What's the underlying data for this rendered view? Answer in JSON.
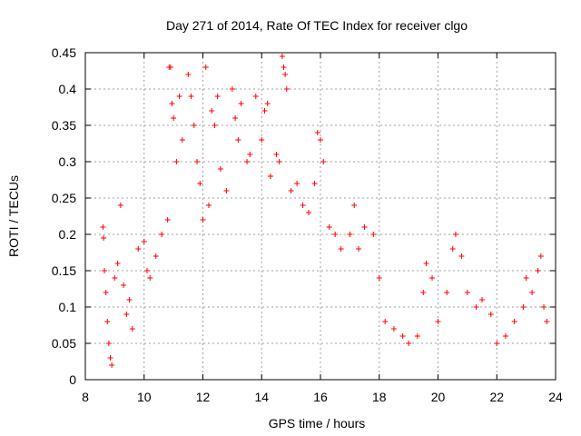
{
  "chart_data": {
    "type": "scatter",
    "title": "Day 271 of 2014, Rate Of TEC Index for receiver clgo",
    "xlabel": "GPS time / hours",
    "ylabel": "ROTI / TECUs",
    "xlim": [
      8,
      24
    ],
    "ylim": [
      0,
      0.45
    ],
    "xticks": [
      "8",
      "10",
      "12",
      "14",
      "16",
      "18",
      "20",
      "22",
      "24"
    ],
    "yticks": [
      "0",
      "0.05",
      "0.1",
      "0.15",
      "0.2",
      "0.25",
      "0.3",
      "0.35",
      "0.4",
      "0.45"
    ],
    "grid": true,
    "marker": "+",
    "color": "#ff0000",
    "series": [
      {
        "name": "ROTI",
        "points": [
          [
            8.6,
            0.21
          ],
          [
            8.62,
            0.195
          ],
          [
            8.65,
            0.15
          ],
          [
            8.7,
            0.12
          ],
          [
            8.75,
            0.08
          ],
          [
            8.8,
            0.05
          ],
          [
            8.85,
            0.03
          ],
          [
            8.9,
            0.02
          ],
          [
            9.0,
            0.14
          ],
          [
            9.1,
            0.16
          ],
          [
            9.2,
            0.24
          ],
          [
            9.3,
            0.13
          ],
          [
            9.4,
            0.09
          ],
          [
            9.5,
            0.11
          ],
          [
            9.6,
            0.07
          ],
          [
            9.8,
            0.18
          ],
          [
            10.0,
            0.19
          ],
          [
            10.1,
            0.15
          ],
          [
            10.2,
            0.14
          ],
          [
            10.4,
            0.17
          ],
          [
            10.6,
            0.2
          ],
          [
            10.8,
            0.22
          ],
          [
            10.85,
            0.43
          ],
          [
            10.9,
            0.43
          ],
          [
            10.95,
            0.38
          ],
          [
            11.0,
            0.36
          ],
          [
            11.1,
            0.3
          ],
          [
            11.2,
            0.39
          ],
          [
            11.3,
            0.33
          ],
          [
            11.5,
            0.42
          ],
          [
            11.6,
            0.39
          ],
          [
            11.7,
            0.35
          ],
          [
            11.8,
            0.3
          ],
          [
            11.9,
            0.27
          ],
          [
            12.0,
            0.22
          ],
          [
            12.1,
            0.43
          ],
          [
            12.2,
            0.24
          ],
          [
            12.3,
            0.37
          ],
          [
            12.4,
            0.35
          ],
          [
            12.5,
            0.39
          ],
          [
            12.6,
            0.29
          ],
          [
            12.8,
            0.26
          ],
          [
            13.0,
            0.4
          ],
          [
            13.1,
            0.36
          ],
          [
            13.2,
            0.33
          ],
          [
            13.3,
            0.38
          ],
          [
            13.5,
            0.3
          ],
          [
            13.6,
            0.31
          ],
          [
            13.8,
            0.39
          ],
          [
            14.0,
            0.33
          ],
          [
            14.1,
            0.37
          ],
          [
            14.2,
            0.38
          ],
          [
            14.3,
            0.28
          ],
          [
            14.5,
            0.31
          ],
          [
            14.6,
            0.3
          ],
          [
            14.7,
            0.445
          ],
          [
            14.75,
            0.43
          ],
          [
            14.8,
            0.42
          ],
          [
            14.85,
            0.4
          ],
          [
            15.0,
            0.26
          ],
          [
            15.2,
            0.27
          ],
          [
            15.4,
            0.24
          ],
          [
            15.6,
            0.23
          ],
          [
            15.8,
            0.27
          ],
          [
            15.9,
            0.34
          ],
          [
            16.0,
            0.33
          ],
          [
            16.1,
            0.3
          ],
          [
            16.3,
            0.21
          ],
          [
            16.5,
            0.2
          ],
          [
            16.7,
            0.18
          ],
          [
            17.0,
            0.2
          ],
          [
            17.15,
            0.24
          ],
          [
            17.3,
            0.18
          ],
          [
            17.5,
            0.21
          ],
          [
            17.8,
            0.2
          ],
          [
            18.0,
            0.14
          ],
          [
            18.2,
            0.08
          ],
          [
            18.5,
            0.07
          ],
          [
            18.8,
            0.06
          ],
          [
            19.0,
            0.05
          ],
          [
            19.3,
            0.06
          ],
          [
            19.5,
            0.12
          ],
          [
            19.6,
            0.16
          ],
          [
            19.8,
            0.14
          ],
          [
            20.0,
            0.08
          ],
          [
            20.3,
            0.12
          ],
          [
            20.5,
            0.18
          ],
          [
            20.6,
            0.2
          ],
          [
            20.8,
            0.17
          ],
          [
            21.0,
            0.12
          ],
          [
            21.3,
            0.1
          ],
          [
            21.5,
            0.11
          ],
          [
            21.8,
            0.09
          ],
          [
            22.0,
            0.05
          ],
          [
            22.3,
            0.06
          ],
          [
            22.6,
            0.08
          ],
          [
            22.9,
            0.1
          ],
          [
            23.0,
            0.14
          ],
          [
            23.2,
            0.12
          ],
          [
            23.4,
            0.15
          ],
          [
            23.5,
            0.17
          ],
          [
            23.6,
            0.1
          ],
          [
            23.7,
            0.08
          ]
        ]
      }
    ]
  }
}
